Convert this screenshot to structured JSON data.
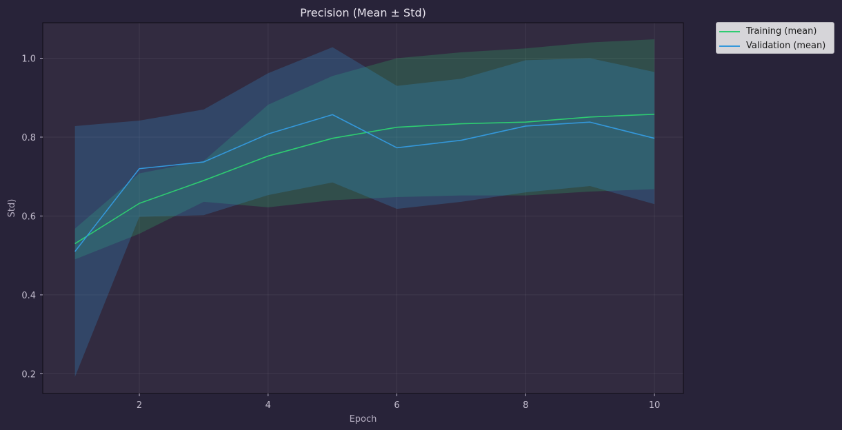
{
  "chart_data": {
    "type": "line",
    "title": "Precision (Mean ± Std)",
    "xlabel": "Epoch",
    "ylabel": "Std)",
    "xlim": [
      0.5,
      10.45
    ],
    "ylim": [
      0.15,
      1.09
    ],
    "xticks": [
      2,
      4,
      6,
      8,
      10
    ],
    "yticks": [
      0.2,
      0.4,
      0.6,
      0.8,
      1.0
    ],
    "ytick_labels": [
      "0.2",
      "0.4",
      "0.6",
      "0.8",
      "1.0"
    ],
    "grid": true,
    "legend_position": "outside-top-right",
    "x": [
      1,
      2,
      3,
      4,
      5,
      6,
      7,
      8,
      9,
      10
    ],
    "series": [
      {
        "name": "Training (mean)",
        "color": "#2ecc71",
        "mean": [
          0.53,
          0.632,
          0.69,
          0.752,
          0.797,
          0.825,
          0.834,
          0.838,
          0.851,
          0.858
        ],
        "upper": [
          0.568,
          0.708,
          0.74,
          0.882,
          0.955,
          1.0,
          1.015,
          1.025,
          1.04,
          1.048
        ],
        "lower": [
          0.49,
          0.555,
          0.636,
          0.622,
          0.64,
          0.648,
          0.652,
          0.652,
          0.662,
          0.668
        ]
      },
      {
        "name": "Validation (mean)",
        "color": "#3498db",
        "mean": [
          0.51,
          0.72,
          0.737,
          0.808,
          0.857,
          0.773,
          0.792,
          0.828,
          0.838,
          0.797
        ],
        "upper": [
          0.828,
          0.842,
          0.87,
          0.962,
          1.028,
          0.93,
          0.948,
          0.995,
          1.0,
          0.965
        ],
        "lower": [
          0.192,
          0.598,
          0.602,
          0.653,
          0.685,
          0.618,
          0.636,
          0.66,
          0.676,
          0.63
        ]
      }
    ]
  }
}
